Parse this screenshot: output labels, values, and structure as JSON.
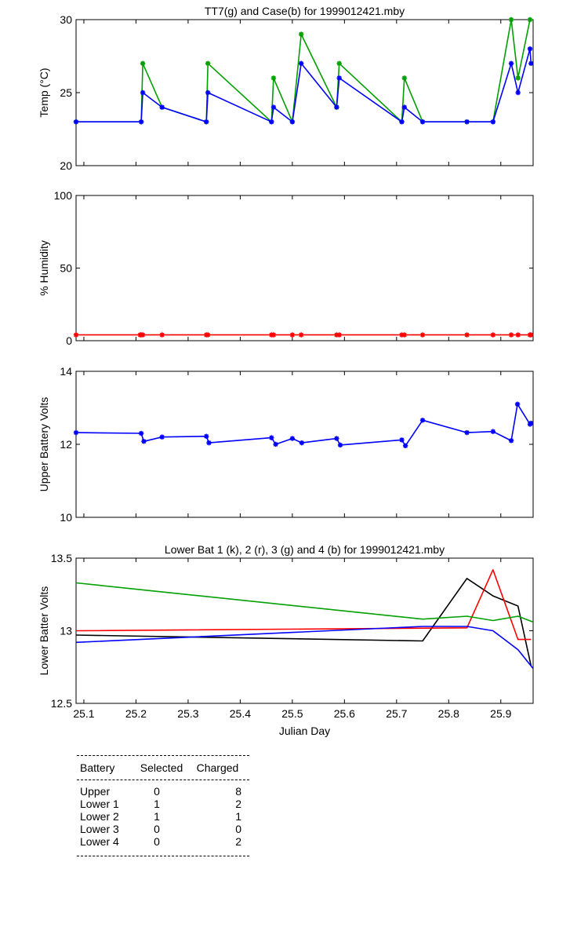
{
  "chart_data": [
    {
      "type": "line",
      "title": "TT7(g) and Case(b) for 1999012421.mby",
      "xlabel": "",
      "ylabel": "Temp  (°C)",
      "xlim": [
        25.085,
        25.962
      ],
      "ylim": [
        20,
        30
      ],
      "yticks": [
        20,
        25,
        30
      ],
      "grid": false,
      "markers": true,
      "series": [
        {
          "name": "TT7",
          "color": "#00a000",
          "x": [
            25.085,
            25.21,
            25.213,
            25.25,
            25.335,
            25.338,
            25.46,
            25.464,
            25.5,
            25.517,
            25.585,
            25.59,
            25.71,
            25.715,
            25.75,
            25.835,
            25.885,
            25.92,
            25.933,
            25.956
          ],
          "y": [
            23,
            23,
            27,
            24,
            23,
            27,
            23,
            26,
            23,
            29,
            24,
            27,
            23,
            26,
            23,
            23,
            23,
            30,
            26,
            30
          ]
        },
        {
          "name": "Case",
          "color": "#0000ff",
          "x": [
            25.085,
            25.21,
            25.213,
            25.25,
            25.335,
            25.338,
            25.46,
            25.464,
            25.5,
            25.517,
            25.585,
            25.59,
            25.71,
            25.715,
            25.75,
            25.835,
            25.885,
            25.92,
            25.933,
            25.956,
            25.958
          ],
          "y": [
            23,
            23,
            25,
            24,
            23,
            25,
            23,
            24,
            23,
            27,
            24,
            26,
            23,
            24,
            23,
            23,
            23,
            27,
            25,
            28,
            27
          ]
        }
      ]
    },
    {
      "type": "line",
      "title": "",
      "xlabel": "",
      "ylabel": "% Humidity",
      "xlim": [
        25.085,
        25.962
      ],
      "ylim": [
        0,
        100
      ],
      "yticks": [
        0,
        50,
        100
      ],
      "grid": false,
      "markers": true,
      "series": [
        {
          "color": "#ff0000",
          "x": [
            25.085,
            25.208,
            25.21,
            25.213,
            25.25,
            25.335,
            25.338,
            25.46,
            25.464,
            25.5,
            25.517,
            25.585,
            25.59,
            25.71,
            25.715,
            25.75,
            25.835,
            25.885,
            25.92,
            25.933,
            25.956,
            25.958
          ],
          "y": [
            4,
            4,
            4,
            4,
            4,
            4,
            4,
            4,
            4,
            4,
            4,
            4,
            4,
            4,
            4,
            4,
            4,
            4,
            4,
            4,
            4,
            4
          ]
        }
      ]
    },
    {
      "type": "line",
      "title": "",
      "xlabel": "",
      "ylabel": "Upper Battery Volts",
      "xlim": [
        25.085,
        25.962
      ],
      "ylim": [
        10,
        14
      ],
      "yticks": [
        10,
        12,
        14
      ],
      "grid": false,
      "markers": true,
      "series": [
        {
          "color": "#0000ff",
          "x": [
            25.085,
            25.21,
            25.215,
            25.25,
            25.335,
            25.34,
            25.46,
            25.468,
            25.5,
            25.518,
            25.585,
            25.592,
            25.71,
            25.717,
            25.75,
            25.835,
            25.885,
            25.92,
            25.932,
            25.956,
            25.958
          ],
          "y": [
            12.32,
            12.3,
            12.08,
            12.2,
            12.22,
            12.04,
            12.18,
            12.0,
            12.16,
            12.04,
            12.16,
            11.98,
            12.12,
            11.96,
            12.66,
            12.32,
            12.35,
            12.1,
            13.1,
            12.55,
            12.58
          ]
        }
      ]
    },
    {
      "type": "line",
      "title": "Lower Bat 1 (k), 2 (r), 3 (g) and 4 (b) for 1999012421.mby",
      "xlabel": "Julian Day",
      "ylabel": "Lower Batter Volts",
      "xlim": [
        25.085,
        25.962
      ],
      "ylim": [
        12.5,
        13.5
      ],
      "yticks": [
        12.5,
        13,
        13.5
      ],
      "xticks": [
        25.1,
        25.2,
        25.3,
        25.4,
        25.5,
        25.6,
        25.7,
        25.8,
        25.9
      ],
      "xticklabels": [
        "25.1",
        "25.2",
        "25.3",
        "25.4",
        "25.5",
        "25.6",
        "25.7",
        "25.8",
        "25.9"
      ],
      "grid": false,
      "markers": false,
      "series": [
        {
          "color": "#000000",
          "x": [
            25.085,
            25.75,
            25.835,
            25.885,
            25.933,
            25.958
          ],
          "y": [
            12.97,
            12.93,
            13.36,
            13.24,
            13.17,
            12.76
          ]
        },
        {
          "color": "#ff0000",
          "x": [
            25.085,
            25.835,
            25.885,
            25.933,
            25.958
          ],
          "y": [
            13.0,
            13.02,
            13.42,
            12.94,
            12.94
          ]
        },
        {
          "color": "#00a000",
          "x": [
            25.085,
            25.75,
            25.835,
            25.885,
            25.933,
            25.962
          ],
          "y": [
            13.33,
            13.08,
            13.1,
            13.07,
            13.1,
            13.06
          ]
        },
        {
          "color": "#0000ff",
          "x": [
            25.085,
            25.75,
            25.835,
            25.885,
            25.933,
            25.962
          ],
          "y": [
            12.92,
            13.03,
            13.03,
            13.0,
            12.87,
            12.74
          ]
        }
      ]
    }
  ],
  "table": {
    "headers": [
      "Battery",
      "Selected",
      "Charged"
    ],
    "rows": [
      [
        "Upper",
        "0",
        "8"
      ],
      [
        "Lower 1",
        "1",
        "2"
      ],
      [
        "Lower 2",
        "1",
        "1"
      ],
      [
        "Lower 3",
        "0",
        "0"
      ],
      [
        "Lower 4",
        "0",
        "2"
      ]
    ]
  }
}
